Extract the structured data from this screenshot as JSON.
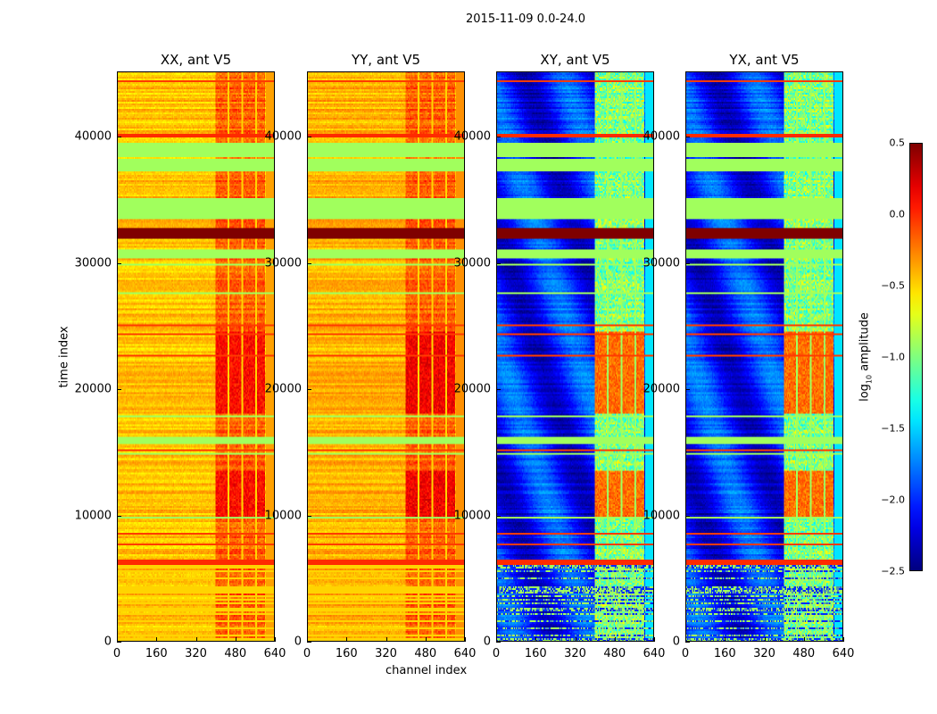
{
  "chart_data": {
    "type": "heatmap",
    "title": "2015-11-09 0.0-24.0",
    "xlabel": "channel index",
    "ylabel": "time index",
    "xlim": [
      0,
      640
    ],
    "ylim": [
      0,
      45170
    ],
    "xticks": [
      "0",
      "160",
      "320",
      "480",
      "640"
    ],
    "yticks": [
      "0",
      "10000",
      "20000",
      "30000",
      "40000"
    ],
    "active_channels": [
      400,
      600
    ],
    "flagged_value": -0.9,
    "panels": [
      {
        "title": "XX, ant V5",
        "base": -0.45,
        "active": -0.15,
        "peak": 0.1
      },
      {
        "title": "YY, ant V5",
        "base": -0.4,
        "active": -0.15,
        "peak": 0.15
      },
      {
        "title": "XY, ant V5",
        "base": -2.05,
        "active": -1.0,
        "peak": -0.2
      },
      {
        "title": "YX, ant V5",
        "base": -2.05,
        "active": -1.0,
        "peak": -0.2
      }
    ],
    "time_bands": [
      {
        "range": [
          0,
          6000
        ],
        "kind": "striped"
      },
      {
        "range": [
          6000,
          6500
        ],
        "value": 0.0
      },
      {
        "range": [
          15600,
          16300
        ],
        "value": -0.9
      },
      {
        "range": [
          30300,
          31100
        ],
        "value": -0.9
      },
      {
        "range": [
          31900,
          32800
        ],
        "value": 0.5
      },
      {
        "range": [
          33500,
          35200
        ],
        "value": -0.9
      },
      {
        "range": [
          37200,
          38200
        ],
        "value": -0.9
      },
      {
        "range": [
          38400,
          39500
        ],
        "value": -0.9
      },
      {
        "range": [
          39900,
          40200
        ],
        "value": 0.0
      }
    ],
    "colorbar": {
      "label": {
        "base": "log",
        "sub": "10",
        "rest": " amplitude"
      },
      "min": -2.5,
      "max": 0.5,
      "colormap": "jet",
      "ticks": [
        "0.5",
        "0.0",
        "−0.5",
        "−1.0",
        "−1.5",
        "−2.0",
        "−2.5"
      ]
    }
  }
}
